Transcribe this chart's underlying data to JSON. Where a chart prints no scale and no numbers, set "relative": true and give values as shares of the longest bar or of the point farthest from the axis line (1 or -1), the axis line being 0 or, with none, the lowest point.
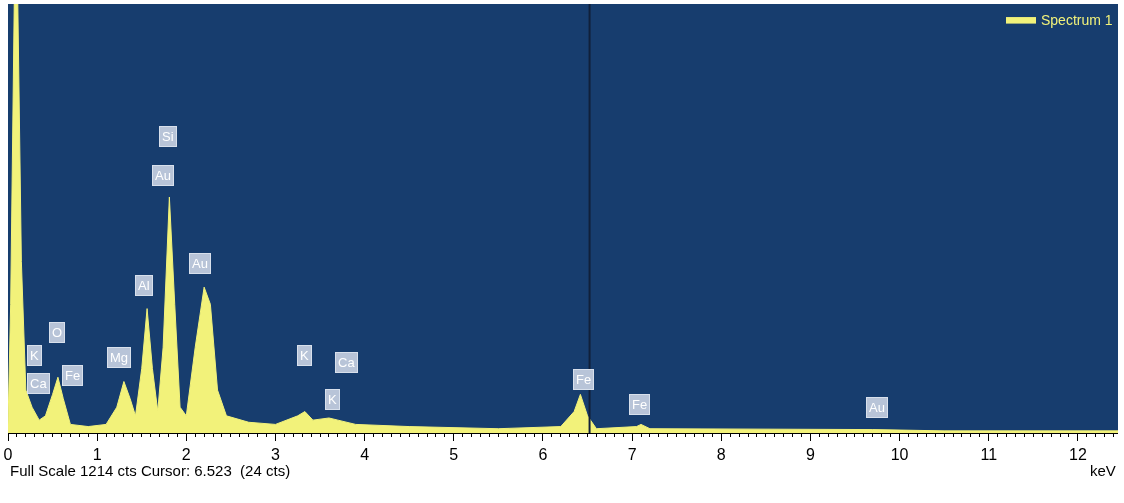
{
  "chart_data": {
    "type": "area",
    "relative": true,
    "xlabel": "keV",
    "legend": "top right",
    "grid": false,
    "marker": "none",
    "xlim": [
      0,
      12.45
    ],
    "xticks": [
      0,
      1,
      2,
      3,
      4,
      5,
      6,
      7,
      8,
      9,
      10,
      11,
      12
    ],
    "x": [
      0,
      0.03,
      0.07,
      0.11,
      0.15,
      0.2,
      0.27,
      0.35,
      0.42,
      0.5,
      0.56,
      0.62,
      0.7,
      0.9,
      1.1,
      1.22,
      1.3,
      1.37,
      1.43,
      1.5,
      1.56,
      1.62,
      1.68,
      1.74,
      1.81,
      1.87,
      1.93,
      2.0,
      2.1,
      2.2,
      2.27,
      2.35,
      2.45,
      2.7,
      3.0,
      3.25,
      3.33,
      3.42,
      3.6,
      3.7,
      3.9,
      4.5,
      5.5,
      6.2,
      6.35,
      6.42,
      6.5,
      6.6,
      7.05,
      7.1,
      7.2,
      9.7,
      10.5,
      12.45
    ],
    "series": [
      {
        "name": "Spectrum 1",
        "color": "#f2f27a",
        "values": [
          0.02,
          0.3,
          1.0,
          1.0,
          0.4,
          0.1,
          0.06,
          0.03,
          0.04,
          0.09,
          0.13,
          0.08,
          0.02,
          0.015,
          0.02,
          0.06,
          0.12,
          0.08,
          0.04,
          0.15,
          0.29,
          0.15,
          0.05,
          0.2,
          0.55,
          0.3,
          0.06,
          0.04,
          0.2,
          0.34,
          0.3,
          0.1,
          0.04,
          0.025,
          0.02,
          0.04,
          0.05,
          0.03,
          0.035,
          0.03,
          0.02,
          0.015,
          0.01,
          0.015,
          0.05,
          0.09,
          0.04,
          0.01,
          0.015,
          0.02,
          0.01,
          0.008,
          0.005,
          0.005
        ]
      }
    ],
    "ref_lines": [
      {
        "axis": "x",
        "value": 6.523,
        "color": "#10203a"
      }
    ],
    "annotations": [
      {
        "text": "K",
        "x": 0.3,
        "y": 0.18
      },
      {
        "text": "O",
        "x": 0.55,
        "y": 0.235
      },
      {
        "text": "Fe",
        "x": 0.72,
        "y": 0.135
      },
      {
        "text": "Ca",
        "x": 0.34,
        "y": 0.115
      },
      {
        "text": "Mg",
        "x": 1.25,
        "y": 0.175
      },
      {
        "text": "Al",
        "x": 1.53,
        "y": 0.345
      },
      {
        "text": "Si",
        "x": 1.79,
        "y": 0.69
      },
      {
        "text": "Au",
        "x": 1.74,
        "y": 0.6
      },
      {
        "text": "Au",
        "x": 2.15,
        "y": 0.395
      },
      {
        "text": "K",
        "x": 3.33,
        "y": 0.18
      },
      {
        "text": "Ca",
        "x": 3.8,
        "y": 0.165
      },
      {
        "text": "K",
        "x": 3.64,
        "y": 0.078
      },
      {
        "text": "Fe",
        "x": 6.46,
        "y": 0.125
      },
      {
        "text": "Fe",
        "x": 7.08,
        "y": 0.066
      },
      {
        "text": "Au",
        "x": 9.75,
        "y": 0.059
      },
      "Full Scale 1214 cts Cursor: 6.523  (24 cts)"
    ]
  }
}
